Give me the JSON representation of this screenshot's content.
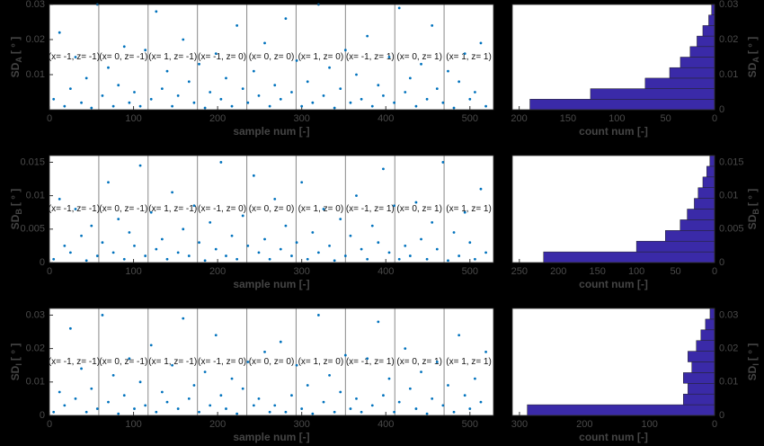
{
  "chart_data": [
    {
      "type": "scatter",
      "xlabel": "sample num [-]",
      "ylabel": "SD",
      "ylabel_sub": "A",
      "ylabel_unit": "[ ° ]",
      "color": "#0072bd",
      "xlim": [
        0,
        528
      ],
      "xticks": [
        0,
        100,
        200,
        300,
        400,
        500
      ],
      "ylim": [
        0,
        0.03
      ],
      "yticks": [
        0.01,
        0.02,
        0.03
      ],
      "group_boundaries": [
        58.7,
        117.3,
        176,
        234.7,
        293.3,
        352,
        410.7,
        469.3
      ],
      "group_labels": [
        "(x= -1, z= -1)",
        "(x= 0, z= -1)",
        "(x= 1, z= -1)",
        "(x= -1, z= 0)",
        "(x= 0, z= 0)",
        "(x= 1, z= 0)",
        "(x= -1, z= 1)",
        "(x= 0, z= 1)",
        "(x= 1, z= 1)"
      ],
      "x": [
        5,
        12,
        18,
        25,
        31,
        38,
        44,
        50,
        57,
        63,
        70,
        76,
        82,
        89,
        95,
        101,
        108,
        114,
        121,
        127,
        134,
        140,
        146,
        153,
        159,
        166,
        172,
        178,
        185,
        191,
        198,
        204,
        210,
        217,
        223,
        230,
        236,
        243,
        249,
        256,
        262,
        268,
        275,
        281,
        288,
        294,
        300,
        307,
        313,
        320,
        326,
        333,
        339,
        346,
        352,
        358,
        365,
        371,
        378,
        384,
        391,
        397,
        404,
        410,
        416,
        423,
        429,
        436,
        442,
        449,
        455,
        461,
        468,
        474,
        481,
        487,
        494,
        500,
        506,
        513,
        519
      ],
      "y": [
        0.003,
        0.022,
        0.001,
        0.006,
        0.015,
        0.002,
        0.009,
        0.0005,
        0.03,
        0.004,
        0.012,
        0.001,
        0.007,
        0.018,
        0.002,
        0.005,
        0.001,
        0.017,
        0.003,
        0.028,
        0.006,
        0.011,
        0.001,
        0.004,
        0.02,
        0.008,
        0.002,
        0.013,
        0.0005,
        0.005,
        0.016,
        0.003,
        0.009,
        0.001,
        0.024,
        0.006,
        0.002,
        0.011,
        0.004,
        0.019,
        0.001,
        0.007,
        0.003,
        0.026,
        0.005,
        0.014,
        0.001,
        0.008,
        0.002,
        0.03,
        0.004,
        0.012,
        0.0005,
        0.006,
        0.017,
        0.002,
        0.01,
        0.003,
        0.021,
        0.001,
        0.007,
        0.004,
        0.015,
        0.002,
        0.029,
        0.005,
        0.009,
        0.001,
        0.013,
        0.003,
        0.024,
        0.006,
        0.002,
        0.011,
        0.0005,
        0.008,
        0.016,
        0.003,
        0.005,
        0.019,
        0.001
      ]
    },
    {
      "type": "histogram",
      "xlabel": "count num [-]",
      "ylabel": "SD",
      "ylabel_sub": "A",
      "ylabel_unit": "[ ° ]",
      "color": "#3a2aa8",
      "xlim": [
        207,
        0
      ],
      "xticks": [
        200,
        150,
        100,
        50,
        0
      ],
      "ylim": [
        0,
        0.03
      ],
      "yticks": [
        0,
        0.01,
        0.02,
        0.03
      ],
      "bins": [
        0,
        0.003,
        0.006,
        0.009,
        0.012,
        0.015,
        0.018,
        0.021,
        0.024,
        0.027,
        0.03
      ],
      "counts": [
        189,
        127,
        71,
        46,
        35,
        25,
        18,
        12,
        6,
        3
      ]
    },
    {
      "type": "scatter",
      "xlabel": "sample num [-]",
      "ylabel": "SD",
      "ylabel_sub": "B",
      "ylabel_unit": "[ ° ]",
      "color": "#0072bd",
      "xlim": [
        0,
        528
      ],
      "xticks": [
        0,
        100,
        200,
        300,
        400,
        500
      ],
      "ylim": [
        0,
        0.016
      ],
      "yticks": [
        0,
        0.005,
        0.01,
        0.015
      ],
      "group_boundaries": [
        58.7,
        117.3,
        176,
        234.7,
        293.3,
        352,
        410.7,
        469.3
      ],
      "group_labels": [
        "(x= -1, z= -1)",
        "(x= 0, z= -1)",
        "(x= 1, z= -1)",
        "(x= -1, z= 0)",
        "(x= 0, z= 0)",
        "(x= 1, z= 0)",
        "(x= -1, z= 1)",
        "(x= 0, z= 1)",
        "(x= 1, z= 1)"
      ],
      "x": [
        5,
        12,
        18,
        25,
        31,
        38,
        44,
        50,
        57,
        63,
        70,
        76,
        82,
        89,
        95,
        101,
        108,
        114,
        121,
        127,
        134,
        140,
        146,
        153,
        159,
        166,
        172,
        178,
        185,
        191,
        198,
        204,
        210,
        217,
        223,
        230,
        236,
        243,
        249,
        256,
        262,
        268,
        275,
        281,
        288,
        294,
        300,
        307,
        313,
        320,
        326,
        333,
        339,
        346,
        352,
        358,
        365,
        371,
        378,
        384,
        391,
        397,
        404,
        410,
        416,
        423,
        429,
        436,
        442,
        449,
        455,
        461,
        468,
        474,
        481,
        487,
        494,
        500,
        506,
        513,
        519
      ],
      "y": [
        0.0005,
        0.0095,
        0.0025,
        0.0015,
        0.008,
        0.004,
        0.0003,
        0.0055,
        0.001,
        0.003,
        0.012,
        0.0015,
        0.0065,
        0.0005,
        0.0045,
        0.0025,
        0.0145,
        0.001,
        0.0075,
        0.002,
        0.0035,
        0.0005,
        0.0105,
        0.0015,
        0.005,
        0.001,
        0.0085,
        0.003,
        0.0003,
        0.006,
        0.002,
        0.015,
        0.001,
        0.004,
        0.0005,
        0.007,
        0.0025,
        0.013,
        0.0015,
        0.0035,
        0.0005,
        0.0095,
        0.002,
        0.0055,
        0.001,
        0.003,
        0.012,
        0.0005,
        0.0045,
        0.0015,
        0.008,
        0.0025,
        0.0003,
        0.0065,
        0.001,
        0.004,
        0.01,
        0.002,
        0.0005,
        0.0055,
        0.003,
        0.014,
        0.0015,
        0.0085,
        0.0005,
        0.0025,
        0.001,
        0.009,
        0.0035,
        0.0005,
        0.006,
        0.002,
        0.015,
        0.0003,
        0.0045,
        0.001,
        0.0075,
        0.003,
        0.0005,
        0.011,
        0.0015
      ]
    },
    {
      "type": "histogram",
      "xlabel": "count num [-]",
      "ylabel": "SD",
      "ylabel_sub": "B",
      "ylabel_unit": "[ ° ]",
      "color": "#3a2aa8",
      "xlim": [
        259,
        0
      ],
      "xticks": [
        250,
        200,
        150,
        100,
        50,
        0
      ],
      "ylim": [
        0,
        0.016
      ],
      "yticks": [
        0,
        0.005,
        0.01,
        0.015
      ],
      "bins": [
        0,
        0.0016,
        0.0032,
        0.0048,
        0.0064,
        0.008,
        0.0096,
        0.0112,
        0.0128,
        0.0144,
        0.016
      ],
      "counts": [
        219,
        100,
        63,
        44,
        35,
        26,
        21,
        15,
        10,
        6
      ]
    },
    {
      "type": "scatter",
      "xlabel": "sample num [-]",
      "ylabel": "SD",
      "ylabel_sub": "I",
      "ylabel_unit": "[ ° ]",
      "color": "#0072bd",
      "xlim": [
        0,
        528
      ],
      "xticks": [
        0,
        100,
        200,
        300,
        400,
        500
      ],
      "ylim": [
        0,
        0.032
      ],
      "yticks": [
        0,
        0.01,
        0.02,
        0.03
      ],
      "group_boundaries": [
        58.7,
        117.3,
        176,
        234.7,
        293.3,
        352,
        410.7,
        469.3
      ],
      "group_labels": [
        "(x= -1, z= -1)",
        "(x= 0, z= -1)",
        "(x= 1, z= -1)",
        "(x= -1, z= 0)",
        "(x= 0, z= 0)",
        "(x= 1, z= 0)",
        "(x= -1, z= 1)",
        "(x= 0, z= 1)",
        "(x= 1, z= 1)"
      ],
      "x": [
        5,
        12,
        18,
        25,
        31,
        38,
        44,
        50,
        57,
        63,
        70,
        76,
        82,
        89,
        95,
        101,
        108,
        114,
        121,
        127,
        134,
        140,
        146,
        153,
        159,
        166,
        172,
        178,
        185,
        191,
        198,
        204,
        210,
        217,
        223,
        230,
        236,
        243,
        249,
        256,
        262,
        268,
        275,
        281,
        288,
        294,
        300,
        307,
        313,
        320,
        326,
        333,
        339,
        346,
        352,
        358,
        365,
        371,
        378,
        384,
        391,
        397,
        404,
        410,
        416,
        423,
        429,
        436,
        442,
        449,
        455,
        461,
        468,
        474,
        481,
        487,
        494,
        500,
        506,
        513,
        519
      ],
      "y": [
        0.001,
        0.007,
        0.003,
        0.026,
        0.005,
        0.014,
        0.001,
        0.008,
        0.002,
        0.03,
        0.004,
        0.012,
        0.0005,
        0.006,
        0.017,
        0.002,
        0.01,
        0.003,
        0.021,
        0.001,
        0.007,
        0.004,
        0.015,
        0.002,
        0.029,
        0.005,
        0.009,
        0.001,
        0.013,
        0.003,
        0.024,
        0.006,
        0.002,
        0.011,
        0.0005,
        0.008,
        0.016,
        0.003,
        0.005,
        0.019,
        0.001,
        0.003,
        0.022,
        0.001,
        0.006,
        0.015,
        0.002,
        0.009,
        0.0005,
        0.03,
        0.004,
        0.012,
        0.001,
        0.007,
        0.018,
        0.002,
        0.005,
        0.001,
        0.017,
        0.003,
        0.028,
        0.006,
        0.011,
        0.001,
        0.004,
        0.02,
        0.008,
        0.002,
        0.013,
        0.0005,
        0.005,
        0.016,
        0.003,
        0.009,
        0.001,
        0.024,
        0.006,
        0.002,
        0.011,
        0.004,
        0.019
      ]
    },
    {
      "type": "histogram",
      "xlabel": "count num [-]",
      "ylabel": "SD",
      "ylabel_sub": "I",
      "ylabel_unit": "[ ° ]",
      "color": "#3a2aa8",
      "xlim": [
        311,
        0
      ],
      "xticks": [
        300,
        200,
        100,
        0
      ],
      "ylim": [
        0,
        0.032
      ],
      "yticks": [
        0,
        0.01,
        0.02,
        0.03
      ],
      "bins": [
        0,
        0.0032,
        0.0064,
        0.0096,
        0.0128,
        0.016,
        0.0192,
        0.0224,
        0.0256,
        0.0288,
        0.032
      ],
      "counts": [
        288,
        48,
        41,
        48,
        35,
        41,
        28,
        21,
        14,
        7
      ]
    }
  ]
}
